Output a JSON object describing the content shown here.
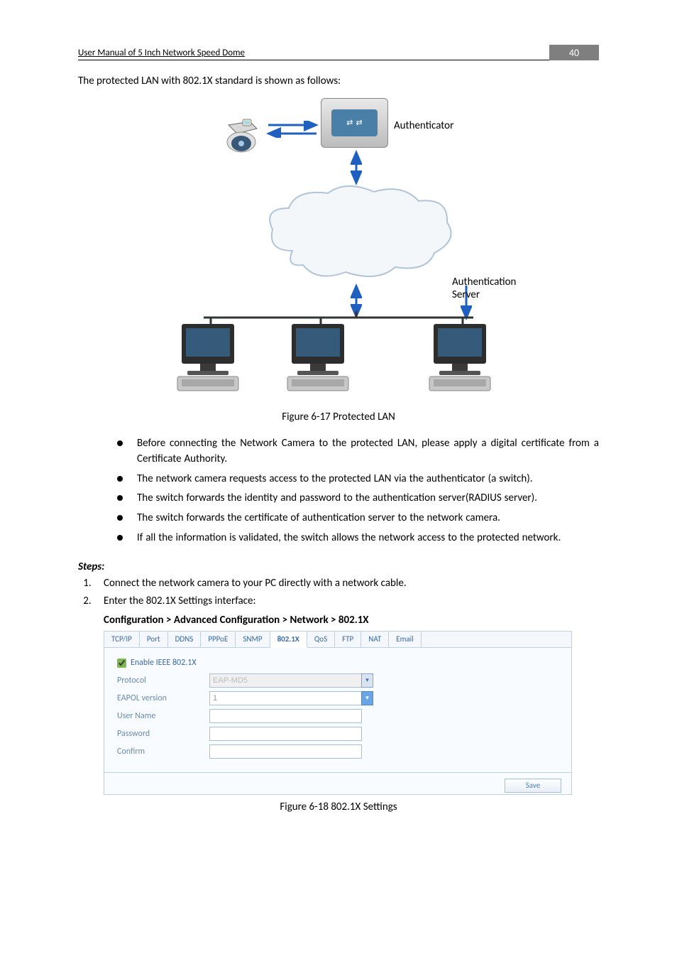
{
  "page": {
    "header_title": "User Manual of 5 Inch Network Speed Dome",
    "page_number": "40",
    "intro": "The protected LAN with 802.1X standard is shown as follows:",
    "label_authenticator": "Authenticator",
    "label_authserver_l1": "Authentication",
    "label_authserver_l2": "Server",
    "fig1_caption": "Figure 6-17 Protected LAN",
    "bullets": [
      "Before connecting the Network Camera to the protected LAN, please apply a digital certificate from a Certificate Authority.",
      "The network camera requests access to the protected LAN via the authenticator (a switch).",
      "The switch forwards the identity and password to the authentication server(RADIUS server).",
      "The switch forwards the certificate of authentication server to the network camera.",
      "If all the information is validated, the switch allows the network access to the protected network."
    ],
    "steps_heading": "Steps:",
    "steps": [
      "Connect the network camera to your PC directly with a network cable.",
      "Enter the 802.1X Settings interface:"
    ],
    "breadcrumb": "Configuration > Advanced Configuration > Network > 802.1X",
    "fig2_caption": "Figure 6-18 802.1X Settings"
  },
  "tabs": [
    "TCP/IP",
    "Port",
    "DDNS",
    "PPPoE",
    "SNMP",
    "802.1X",
    "QoS",
    "FTP",
    "NAT",
    "Email"
  ],
  "active_tab_index": 5,
  "form": {
    "checkbox_label": "Enable IEEE 802.1X",
    "checkbox_checked": true,
    "protocol_label": "Protocol",
    "protocol_value": "EAP-MD5",
    "eapol_label": "EAPOL version",
    "eapol_value": "1",
    "username_label": "User Name",
    "username_value": "",
    "password_label": "Password",
    "password_value": "",
    "confirm_label": "Confirm",
    "confirm_value": "",
    "save_label": "Save"
  },
  "colors": {
    "page_num_bg": "#7f7f7f",
    "tab_text": "#3a6aa8",
    "form_label": "#6a8ab0",
    "panel_border": "#c0d0e0",
    "arrow_blue": "#1f5fbf"
  }
}
